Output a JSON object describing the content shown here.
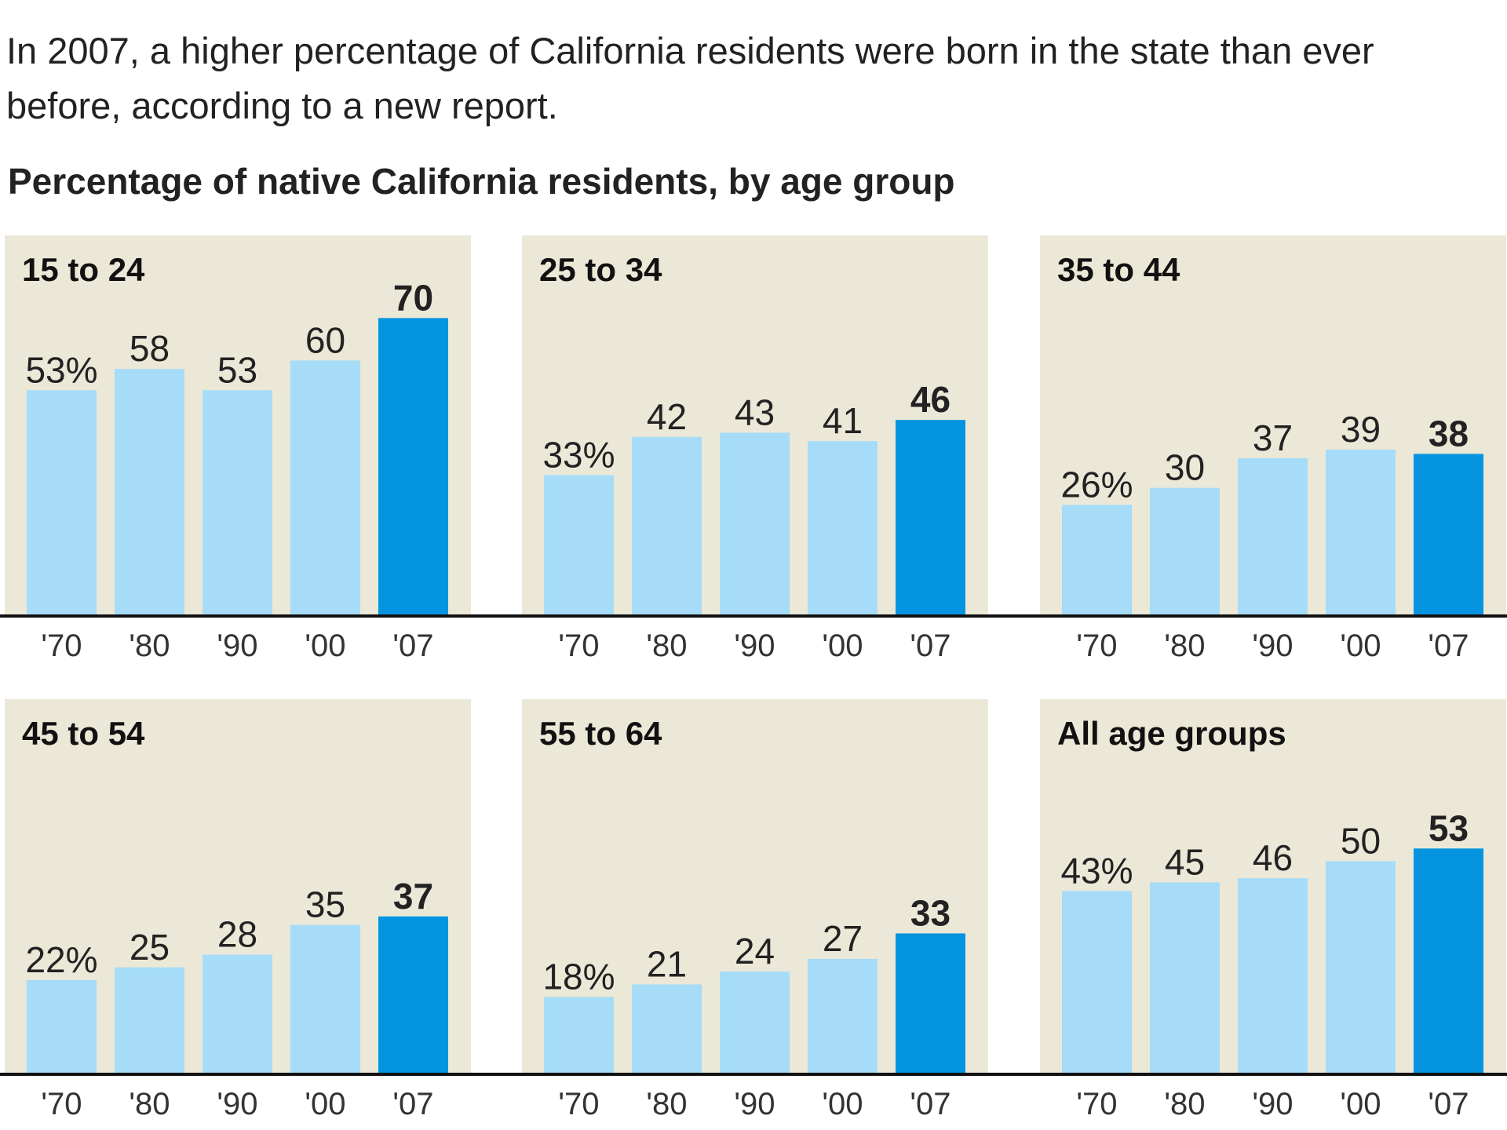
{
  "intro": "In 2007, a higher percentage of California residents were born in the state than ever before, according to a new report.",
  "heading": "Percentage of native California residents, by age group",
  "chart_data": [
    {
      "type": "bar",
      "title": "15 to 24",
      "categories": [
        "'70",
        "'80",
        "'90",
        "'00",
        "'07"
      ],
      "values": [
        53,
        58,
        53,
        60,
        70
      ],
      "value_labels": [
        "53%",
        "58",
        "53",
        "60",
        "70"
      ],
      "colors": [
        "#a6dcf7",
        "#a6dcf7",
        "#a6dcf7",
        "#a6dcf7",
        "#0494e0"
      ]
    },
    {
      "type": "bar",
      "title": "25 to 34",
      "categories": [
        "'70",
        "'80",
        "'90",
        "'00",
        "'07"
      ],
      "values": [
        33,
        42,
        43,
        41,
        46
      ],
      "value_labels": [
        "33%",
        "42",
        "43",
        "41",
        "46"
      ],
      "colors": [
        "#a6dcf7",
        "#a6dcf7",
        "#a6dcf7",
        "#a6dcf7",
        "#0494e0"
      ]
    },
    {
      "type": "bar",
      "title": "35 to 44",
      "categories": [
        "'70",
        "'80",
        "'90",
        "'00",
        "'07"
      ],
      "values": [
        26,
        30,
        37,
        39,
        38
      ],
      "value_labels": [
        "26%",
        "30",
        "37",
        "39",
        "38"
      ],
      "colors": [
        "#a6dcf7",
        "#a6dcf7",
        "#a6dcf7",
        "#a6dcf7",
        "#0494e0"
      ]
    },
    {
      "type": "bar",
      "title": "45 to 54",
      "categories": [
        "'70",
        "'80",
        "'90",
        "'00",
        "'07"
      ],
      "values": [
        22,
        25,
        28,
        35,
        37
      ],
      "value_labels": [
        "22%",
        "25",
        "28",
        "35",
        "37"
      ],
      "colors": [
        "#a6dcf7",
        "#a6dcf7",
        "#a6dcf7",
        "#a6dcf7",
        "#0494e0"
      ]
    },
    {
      "type": "bar",
      "title": "55 to 64",
      "categories": [
        "'70",
        "'80",
        "'90",
        "'00",
        "'07"
      ],
      "values": [
        18,
        21,
        24,
        27,
        33
      ],
      "value_labels": [
        "18%",
        "21",
        "24",
        "27",
        "33"
      ],
      "colors": [
        "#a6dcf7",
        "#a6dcf7",
        "#a6dcf7",
        "#a6dcf7",
        "#0494e0"
      ]
    },
    {
      "type": "bar",
      "title": "All age groups",
      "categories": [
        "'70",
        "'80",
        "'90",
        "'00",
        "'07"
      ],
      "values": [
        43,
        45,
        46,
        50,
        53
      ],
      "value_labels": [
        "43%",
        "45",
        "46",
        "50",
        "53"
      ],
      "colors": [
        "#a6dcf7",
        "#a6dcf7",
        "#a6dcf7",
        "#a6dcf7",
        "#0494e0"
      ]
    }
  ]
}
